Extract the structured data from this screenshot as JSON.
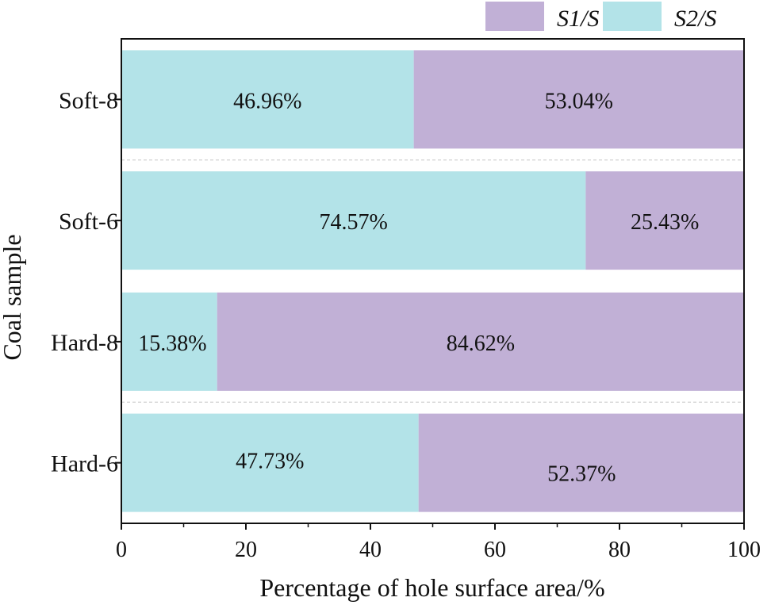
{
  "chart_data": {
    "type": "bar",
    "orientation": "horizontal",
    "stacked": true,
    "title": "",
    "xlabel": "Percentage of hole surface area/%",
    "ylabel": "Coal sample",
    "xlim": [
      0,
      100
    ],
    "xticks": [
      "0",
      "20",
      "40",
      "60",
      "80",
      "100"
    ],
    "xtick_values": [
      0,
      20,
      40,
      60,
      80,
      100
    ],
    "categories": [
      "Soft-8",
      "Soft-6",
      "Hard-8",
      "Hard-6"
    ],
    "series": [
      {
        "name": "S2/S",
        "color": "#b3e3e8",
        "values": [
          46.96,
          74.57,
          15.38,
          47.73
        ],
        "labels": [
          "46.96%",
          "74.57%",
          "15.38%",
          "47.73%"
        ]
      },
      {
        "name": "S1/S",
        "color": "#c1b0d6",
        "values": [
          53.04,
          25.43,
          84.62,
          52.37
        ],
        "labels": [
          "53.04%",
          "25.43%",
          "84.62%",
          "52.37%"
        ]
      }
    ],
    "legend": {
      "position": "top-right",
      "entries": [
        {
          "label": "S1/S",
          "color": "#c1b0d6"
        },
        {
          "label": "S2/S",
          "color": "#b3e3e8"
        }
      ]
    },
    "grid": false
  }
}
